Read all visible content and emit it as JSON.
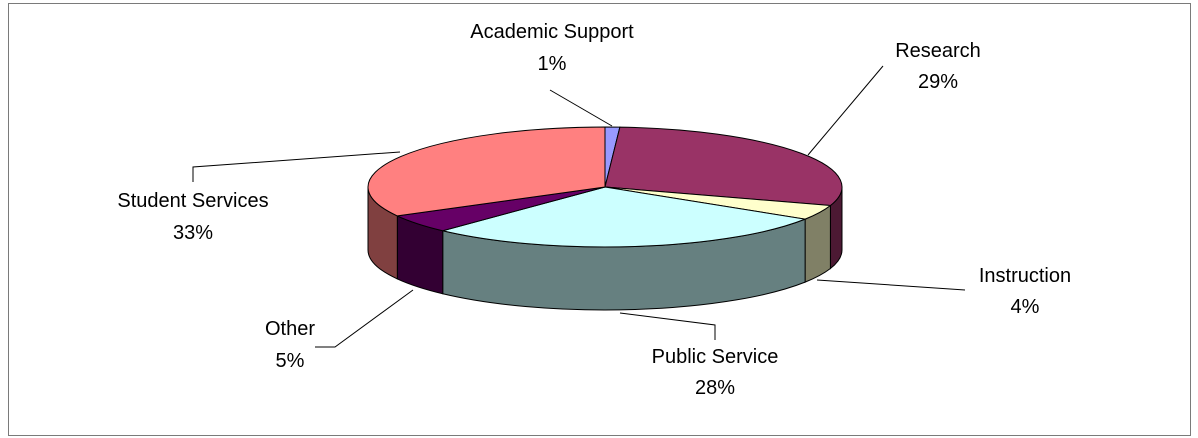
{
  "chart_data": {
    "type": "pie",
    "style": "3d-exploded-none",
    "title": "",
    "slices": [
      {
        "label": "Academic Support",
        "value": 1,
        "display": "1%",
        "color": "#9999ff",
        "side_color": "#4d4d80"
      },
      {
        "label": "Research",
        "value": 29,
        "display": "29%",
        "color": "#993366",
        "side_color": "#4c1933"
      },
      {
        "label": "Instruction",
        "value": 4,
        "display": "4%",
        "color": "#ffffcc",
        "side_color": "#808066"
      },
      {
        "label": "Public Service",
        "value": 28,
        "display": "28%",
        "color": "#ccffff",
        "side_color": "#668080"
      },
      {
        "label": "Other",
        "value": 5,
        "display": "5%",
        "color": "#660066",
        "side_color": "#330033"
      },
      {
        "label": "Student Services",
        "value": 33,
        "display": "33%",
        "color": "#ff8080",
        "side_color": "#804040"
      }
    ],
    "legend": "none",
    "labels": "outside-with-leader-lines"
  }
}
